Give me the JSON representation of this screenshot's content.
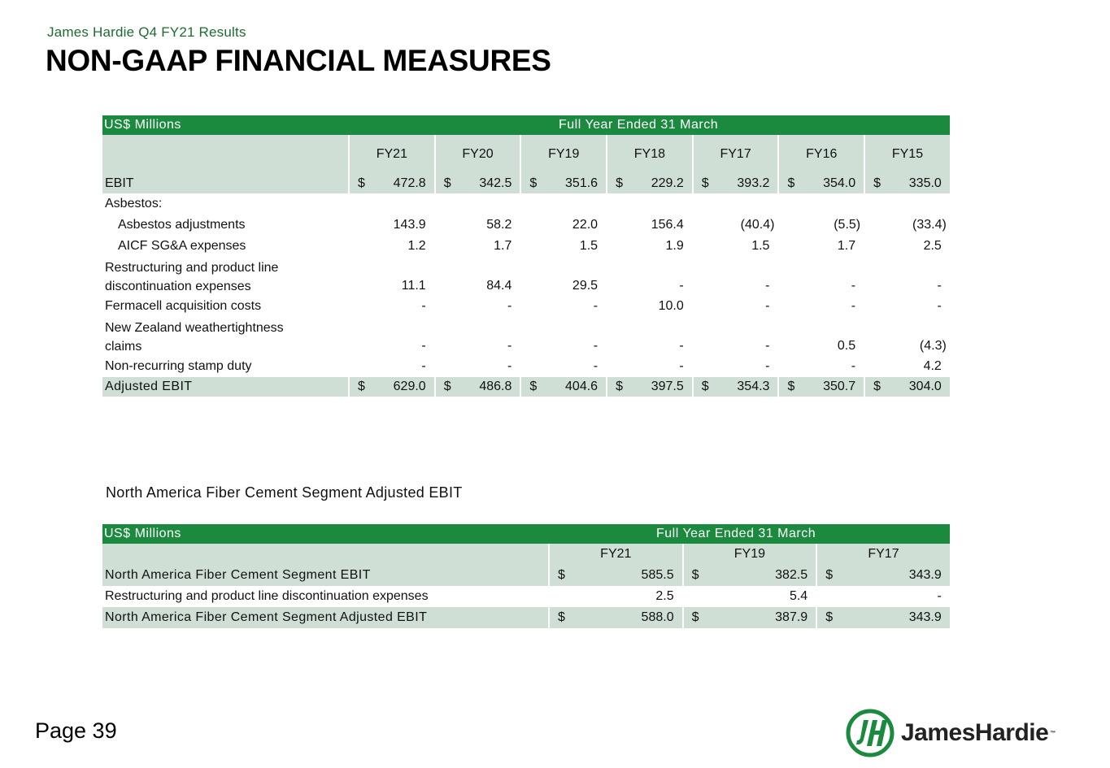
{
  "header": {
    "kicker": "James Hardie Q4 FY21 Results",
    "title": "NON-GAAP FINANCIAL MEASURES"
  },
  "table1": {
    "units_label": "US$ Millions",
    "period_label": "Full Year Ended 31 March",
    "years": [
      "FY21",
      "FY20",
      "FY19",
      "FY18",
      "FY17",
      "FY16",
      "FY15"
    ],
    "currency": "$",
    "ebit": {
      "label": "EBIT",
      "values": [
        "472.8",
        "342.5",
        "351.6",
        "229.2",
        "393.2",
        "354.0",
        "335.0"
      ]
    },
    "asbestos_label": "Asbestos:",
    "asbestos_adjustments": {
      "label": "Asbestos adjustments",
      "values": [
        "143.9",
        "58.2",
        "22.0",
        "156.4",
        "(40.4)",
        "(5.5)",
        "(33.4)"
      ]
    },
    "aicf": {
      "label": "AICF SG&A expenses",
      "values": [
        "1.2",
        "1.7",
        "1.5",
        "1.9",
        "1.5",
        "1.7",
        "2.5"
      ]
    },
    "restructuring": {
      "label_line1": "Restructuring and product line",
      "label_line2": "discontinuation expenses",
      "values": [
        "11.1",
        "84.4",
        "29.5",
        "-",
        "-",
        "-",
        "-"
      ]
    },
    "fermacell": {
      "label": "Fermacell acquisition costs",
      "values": [
        "-",
        "-",
        "-",
        "10.0",
        "-",
        "-",
        "-"
      ]
    },
    "nz": {
      "label_line1": "New Zealand weathertightness",
      "label_line2": "claims",
      "values": [
        "-",
        "-",
        "-",
        "-",
        "-",
        "0.5",
        "(4.3)"
      ]
    },
    "stamp": {
      "label": "Non-recurring stamp duty",
      "values": [
        "-",
        "-",
        "-",
        "-",
        "-",
        "-",
        "4.2"
      ]
    },
    "adjusted": {
      "label": "Adjusted EBIT",
      "values": [
        "629.0",
        "486.8",
        "404.6",
        "397.5",
        "354.3",
        "350.7",
        "304.0"
      ]
    }
  },
  "section2_title": "North America Fiber Cement Segment Adjusted EBIT",
  "table2": {
    "units_label": "US$ Millions",
    "period_label": "Full Year Ended 31 March",
    "years": [
      "FY21",
      "FY19",
      "FY17"
    ],
    "currency": "$",
    "segment_ebit": {
      "label": "North America Fiber Cement Segment EBIT",
      "values": [
        "585.5",
        "382.5",
        "343.9"
      ]
    },
    "restructuring": {
      "label": "Restructuring and product line discontinuation expenses",
      "values": [
        "2.5",
        "5.4",
        "-"
      ]
    },
    "adjusted": {
      "label": "North America Fiber Cement Segment Adjusted EBIT",
      "values": [
        "588.0",
        "387.9",
        "343.9"
      ]
    }
  },
  "footer": {
    "page": "Page 39",
    "logo_text": "JamesHardie",
    "logo_icon": "jh-monogram-icon",
    "trademark": "™",
    "brand_color": "#1b8a3e"
  }
}
